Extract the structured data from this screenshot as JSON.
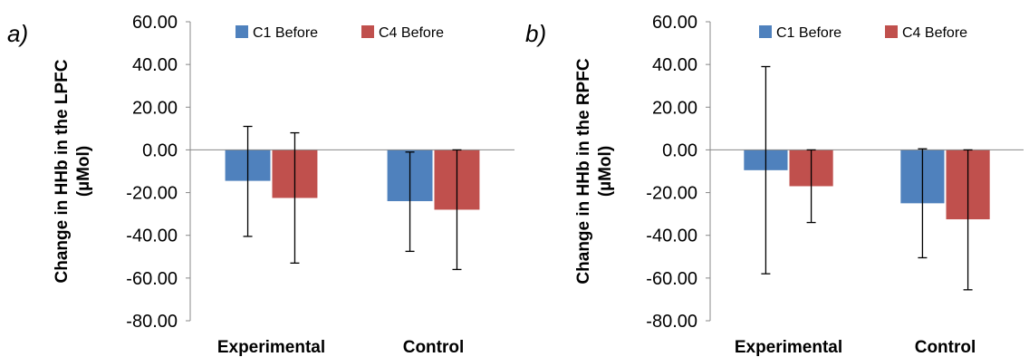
{
  "chart_data": [
    {
      "type": "bar",
      "panel_label": "a)",
      "categories": [
        "Experimental",
        "Control"
      ],
      "ylabel_lines": [
        "Change in HHb in the LPFC",
        "(µMol)"
      ],
      "ylim": [
        -80,
        60
      ],
      "yticks": [
        60,
        40,
        20,
        0,
        -20,
        -40,
        -60,
        -80
      ],
      "ytick_labels": [
        "60.00",
        "40.00",
        "20.00",
        "0.00",
        "-20.00",
        "-40.00",
        "-60.00",
        "-80.00"
      ],
      "grid": false,
      "legend_position": "top",
      "series": [
        {
          "name": "C1 Before",
          "color": "#4F81BD",
          "values": [
            -14.5,
            -24.0
          ],
          "error_low": [
            -40.5,
            -47.5
          ],
          "error_high": [
            11.0,
            -1.0
          ]
        },
        {
          "name": "C4 Before",
          "color": "#C0504D",
          "values": [
            -22.5,
            -28.0
          ],
          "error_low": [
            -53.0,
            -56.0
          ],
          "error_high": [
            8.0,
            0.0
          ]
        }
      ]
    },
    {
      "type": "bar",
      "panel_label": "b)",
      "categories": [
        "Experimental",
        "Control"
      ],
      "ylabel_lines": [
        "Change in HHb in the RPFC",
        "(µMol)"
      ],
      "ylim": [
        -80,
        60
      ],
      "yticks": [
        60,
        40,
        20,
        0,
        -20,
        -40,
        -60,
        -80
      ],
      "ytick_labels": [
        "60.00",
        "40.00",
        "20.00",
        "0.00",
        "-20.00",
        "-40.00",
        "-60.00",
        "-80.00"
      ],
      "grid": false,
      "legend_position": "top",
      "series": [
        {
          "name": "C1 Before",
          "color": "#4F81BD",
          "values": [
            -9.5,
            -25.0
          ],
          "error_low": [
            -58.0,
            -50.5
          ],
          "error_high": [
            39.0,
            0.5
          ]
        },
        {
          "name": "C4 Before",
          "color": "#C0504D",
          "values": [
            -17.0,
            -32.5
          ],
          "error_low": [
            -34.0,
            -65.5
          ],
          "error_high": [
            0.0,
            0.0
          ]
        }
      ]
    }
  ]
}
